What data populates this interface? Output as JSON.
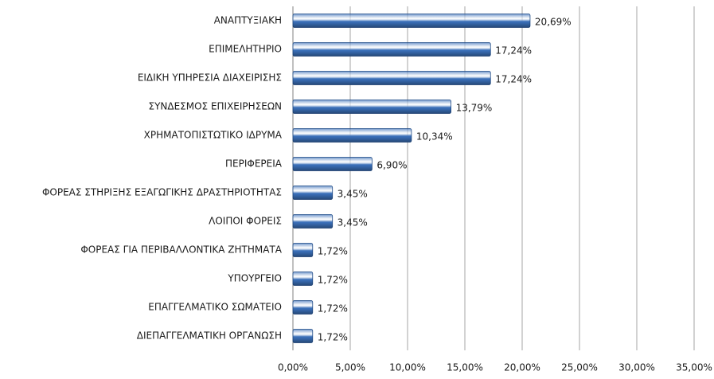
{
  "chart_data": {
    "type": "bar",
    "orientation": "horizontal",
    "categories": [
      "ΑΝΑΠΤΥΞΙΑΚΗ",
      "ΕΠΙΜΕΛΗΤΗΡΙΟ",
      "ΕΙΔΙΚΗ ΥΠΗΡΕΣΙΑ ΔΙΑΧΕΙΡΙΣΗΣ",
      "ΣΥΝΔΕΣΜΟΣ ΕΠΙΧΕΙΡΗΣΕΩΝ",
      "ΧΡΗΜΑΤΟΠΙΣΤΩΤΙΚΟ ΙΔΡΥΜΑ",
      "ΠΕΡΙΦΕΡΕΙΑ",
      "ΦΟΡΕΑΣ ΣΤΗΡΙΞΗΣ ΕΞΑΓΩΓΙΚΗΣ ΔΡΑΣΤΗΡΙΟΤΗΤΑΣ",
      "ΛΟΙΠΟΙ ΦΟΡΕΙΣ",
      "ΦΟΡΕΑΣ ΓΙΑ ΠΕΡΙΒΑΛΛΟΝΤΙΚΑ ΖΗΤΗΜΑΤΑ",
      "ΥΠΟΥΡΓΕΙΟ",
      "ΕΠΑΓΓΕΛΜΑΤΙΚΟ ΣΩΜΑΤΕΙΟ",
      "ΔΙΕΠΑΓΓΕΛΜΑΤΙΚΗ ΟΡΓΑΝΩΣΗ"
    ],
    "values": [
      20.69,
      17.24,
      17.24,
      13.79,
      10.34,
      6.9,
      3.45,
      3.45,
      1.72,
      1.72,
      1.72,
      1.72
    ],
    "value_labels": [
      "20,69%",
      "17,24%",
      "17,24%",
      "13,79%",
      "10,34%",
      "6,90%",
      "3,45%",
      "3,45%",
      "1,72%",
      "1,72%",
      "1,72%",
      "1,72%"
    ],
    "color": "#3a6fb8",
    "xlim": [
      0,
      35
    ],
    "xticks": [
      {
        "value": 0,
        "label": "0,00%"
      },
      {
        "value": 5,
        "label": "5,00%"
      },
      {
        "value": 10,
        "label": "10,00%"
      },
      {
        "value": 15,
        "label": "15,00%"
      },
      {
        "value": 20,
        "label": "20,00%"
      },
      {
        "value": 25,
        "label": "25,00%"
      },
      {
        "value": 30,
        "label": "30,00%"
      },
      {
        "value": 35,
        "label": "35,00%"
      }
    ],
    "grid": true
  }
}
